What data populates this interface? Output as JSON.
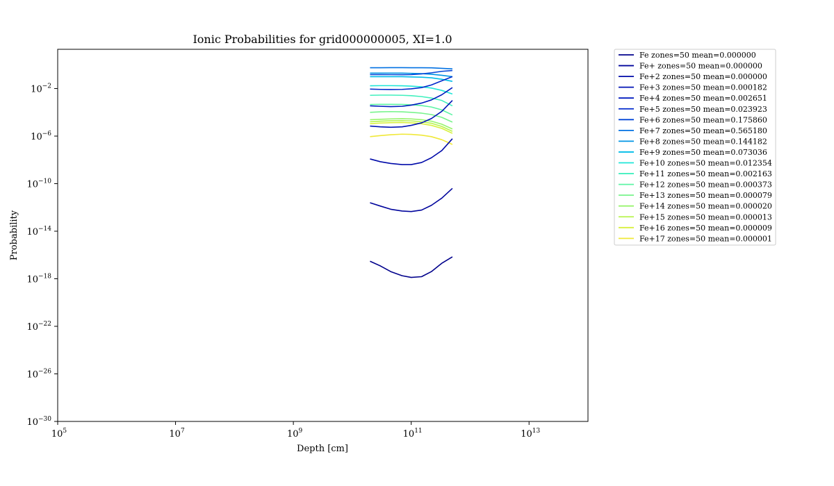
{
  "chart_data": {
    "type": "line",
    "title": "Ionic Probabilities for grid000000005, XI=1.0",
    "xlabel": "Depth [cm]",
    "ylabel": "Probability",
    "xscale": "log",
    "yscale": "log",
    "xlim": [
      100000,
      100000000000000.0
    ],
    "ylim": [
      1e-30,
      20.0
    ],
    "grid": false,
    "legend_placement": "outside-top-right",
    "x_ticks": [
      {
        "value": 100000,
        "base": "10",
        "exp": "5"
      },
      {
        "value": 10000000,
        "base": "10",
        "exp": "7"
      },
      {
        "value": 1000000000,
        "base": "10",
        "exp": "9"
      },
      {
        "value": 100000000000,
        "base": "10",
        "exp": "11"
      },
      {
        "value": 10000000000000,
        "base": "10",
        "exp": "13"
      }
    ],
    "y_ticks": [
      {
        "value": 0.01,
        "base": "10",
        "exp": "−2"
      },
      {
        "value": 1e-06,
        "base": "10",
        "exp": "−6"
      },
      {
        "value": 1e-10,
        "base": "10",
        "exp": "−10"
      },
      {
        "value": 1e-14,
        "base": "10",
        "exp": "−14"
      },
      {
        "value": 1e-18,
        "base": "10",
        "exp": "−18"
      },
      {
        "value": 1e-22,
        "base": "10",
        "exp": "−22"
      },
      {
        "value": 1e-26,
        "base": "10",
        "exp": "−26"
      },
      {
        "value": 1e-30,
        "base": "10",
        "exp": "−30"
      }
    ],
    "x": [
      20000000000.0,
      30000000000.0,
      45000000000.0,
      70000000000.0,
      100000000000.0,
      150000000000.0,
      220000000000.0,
      330000000000.0,
      500000000000.0
    ],
    "series": [
      {
        "name": "Fe zones=50 mean=0.000000",
        "color": "#00008b",
        "values": [
          3e-17,
          1.2e-17,
          4e-18,
          1.8e-18,
          1.3e-18,
          1.5e-18,
          4e-18,
          2e-17,
          7e-17
        ]
      },
      {
        "name": "Fe+ zones=50 mean=0.000000",
        "color": "#00049c",
        "values": [
          2.5e-12,
          1.3e-12,
          7e-13,
          5e-13,
          4.5e-13,
          6e-13,
          1.5e-12,
          6e-12,
          4e-11
        ]
      },
      {
        "name": "Fe+2 zones=50 mean=0.000000",
        "color": "#000aa9",
        "values": [
          1.2e-08,
          7e-09,
          5e-09,
          4e-09,
          4e-09,
          6e-09,
          1.5e-08,
          6e-08,
          6e-07
        ]
      },
      {
        "name": "Fe+3 zones=50 mean=0.000182",
        "color": "#0012b4",
        "values": [
          7e-06,
          6e-06,
          5.5e-06,
          6e-06,
          8e-06,
          1.3e-05,
          3e-05,
          0.00012,
          0.001
        ]
      },
      {
        "name": "Fe+4 zones=50 mean=0.002651",
        "color": "#001abf",
        "values": [
          0.00035,
          0.00032,
          0.0003,
          0.00032,
          0.0004,
          0.0006,
          0.0011,
          0.003,
          0.012
        ]
      },
      {
        "name": "Fe+5 zones=50 mean=0.023923",
        "color": "#0028cc",
        "values": [
          0.009,
          0.0085,
          0.0083,
          0.0085,
          0.0095,
          0.012,
          0.02,
          0.045,
          0.1
        ]
      },
      {
        "name": "Fe+6 zones=50 mean=0.175860",
        "color": "#0044d8",
        "values": [
          0.15,
          0.15,
          0.148,
          0.147,
          0.15,
          0.17,
          0.21,
          0.28,
          0.33
        ]
      },
      {
        "name": "Fe+7 zones=50 mean=0.565180",
        "color": "#0070e2",
        "values": [
          0.56,
          0.565,
          0.57,
          0.57,
          0.565,
          0.56,
          0.55,
          0.5,
          0.45
        ]
      },
      {
        "name": "Fe+8 zones=50 mean=0.144182",
        "color": "#0094e4",
        "values": [
          0.2,
          0.2,
          0.2,
          0.2,
          0.19,
          0.18,
          0.16,
          0.13,
          0.1
        ]
      },
      {
        "name": "Fe+9 zones=50 mean=0.073036",
        "color": "#00bde8",
        "values": [
          0.1,
          0.1,
          0.1,
          0.1,
          0.095,
          0.09,
          0.08,
          0.06,
          0.04
        ]
      },
      {
        "name": "Fe+10 zones=50 mean=0.012354",
        "color": "#1ee6d8",
        "values": [
          0.017,
          0.0175,
          0.0175,
          0.017,
          0.016,
          0.014,
          0.011,
          0.007,
          0.0035
        ]
      },
      {
        "name": "Fe+11 zones=50 mean=0.002163",
        "color": "#40f0be",
        "values": [
          0.0027,
          0.0028,
          0.0028,
          0.0027,
          0.0025,
          0.0021,
          0.0016,
          0.001,
          0.00035
        ]
      },
      {
        "name": "Fe+12 zones=50 mean=0.000373",
        "color": "#5cf4a4",
        "values": [
          0.00045,
          0.00047,
          0.00047,
          0.00046,
          0.00043,
          0.00037,
          0.00028,
          0.00016,
          6e-05
        ]
      },
      {
        "name": "Fe+13 zones=50 mean=0.000079",
        "color": "#78f48c",
        "values": [
          0.0001,
          0.00011,
          0.000115,
          0.00011,
          0.0001,
          8.5e-05,
          6.5e-05,
          3.8e-05,
          1.5e-05
        ]
      },
      {
        "name": "Fe+14 zones=50 mean=0.000020",
        "color": "#98f46c",
        "values": [
          2.4e-05,
          2.6e-05,
          2.8e-05,
          2.9e-05,
          2.8e-05,
          2.4e-05,
          1.8e-05,
          1e-05,
          4e-06
        ]
      },
      {
        "name": "Fe+15 zones=50 mean=0.000013",
        "color": "#b8f44c",
        "values": [
          1.6e-05,
          1.8e-05,
          1.95e-05,
          2e-05,
          1.9e-05,
          1.6e-05,
          1.2e-05,
          6.5e-06,
          2.5e-06
        ]
      },
      {
        "name": "Fe+16 zones=50 mean=0.000009",
        "color": "#d8f03c",
        "values": [
          1.1e-05,
          1.25e-05,
          1.35e-05,
          1.4e-05,
          1.3e-05,
          1.1e-05,
          8e-06,
          4.5e-06,
          1.7e-06
        ]
      },
      {
        "name": "Fe+17 zones=50 mean=0.000001",
        "color": "#f0e838",
        "values": [
          9e-07,
          1.1e-06,
          1.3e-06,
          1.45e-06,
          1.4e-06,
          1.2e-06,
          9e-07,
          5e-07,
          2e-07
        ]
      }
    ]
  }
}
